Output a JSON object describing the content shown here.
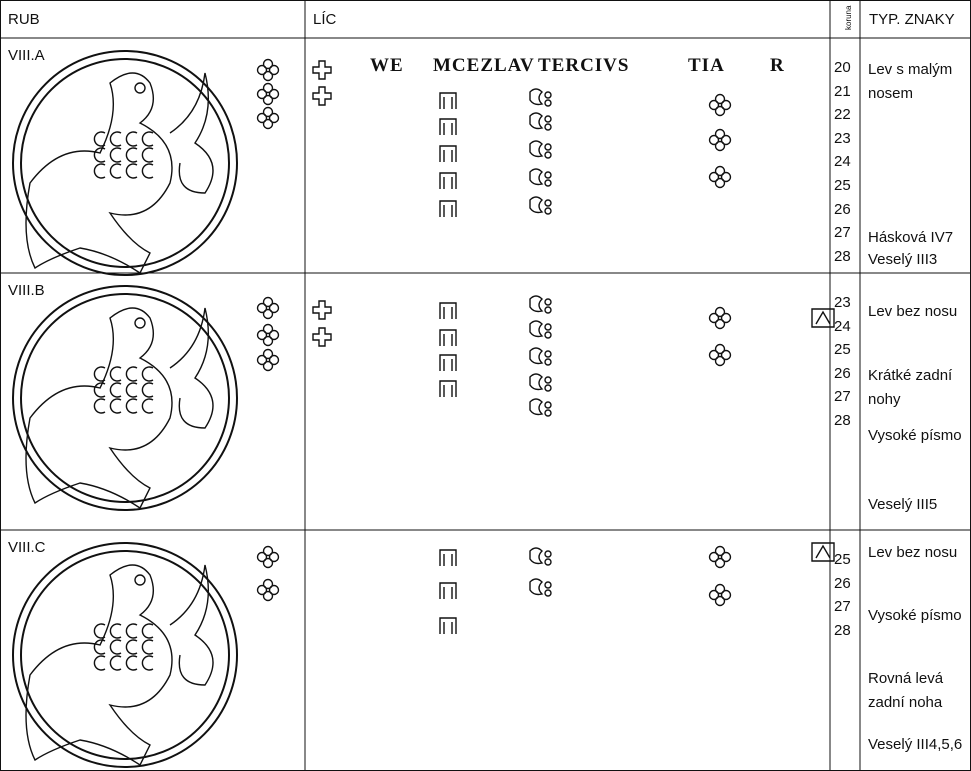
{
  "header": {
    "rub": "RUB",
    "lic": "LÍC",
    "koruna": "koruna",
    "typ": "TYP. ZNAKY"
  },
  "rows": [
    {
      "label": "VIII.A",
      "legend": [
        "WE",
        "MCEZLAV",
        "TERCIVS",
        "TIA",
        "R"
      ],
      "koruna": [
        20,
        21,
        22,
        23,
        24,
        25,
        26,
        27,
        28
      ],
      "notes": [
        "Lev s malým nosem",
        "Hásková IV7",
        "Veselý III3"
      ]
    },
    {
      "label": "VIII.B",
      "legend": [],
      "koruna": [
        23,
        24,
        25,
        26,
        27,
        28
      ],
      "notes": [
        "Lev bez nosu",
        "Krátké zadní nohy",
        "Vysoké písmo",
        "Veselý III5"
      ]
    },
    {
      "label": "VIII.C",
      "legend": [],
      "koruna": [
        25,
        26,
        27,
        28
      ],
      "notes": [
        "Lev bez nosu",
        "Vysoké písmo",
        "Rovná levá zadní noha",
        "Veselý III4,5,6"
      ]
    }
  ]
}
